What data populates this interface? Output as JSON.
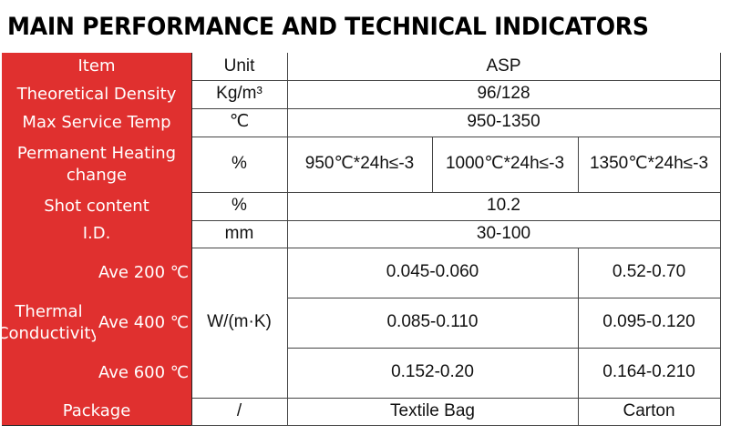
{
  "title": "MAIN PERFORMANCE AND TECHNICAL INDICATORS",
  "table": {
    "header": [
      "Item",
      "Unit",
      "ASP"
    ],
    "rows": [
      [
        "Theoretical Density",
        "Kg/m³",
        "96/128"
      ],
      [
        "Max Service Temp",
        "℃",
        "950-1350"
      ],
      [
        "Permanent Heating change",
        "%",
        "950℃*24h≤-3",
        "1000℃*24h≤-3",
        "1350℃*24h≤-3"
      ],
      [
        "Shot content",
        "%",
        "10.2"
      ],
      [
        "I.D.",
        "mm",
        "30-100"
      ]
    ],
    "thermal": {
      "label": "Thermal Conductivity",
      "unit": "W/(m·K)",
      "rows": [
        [
          "Ave 200 ℃",
          "0.045-0.060",
          "0.52-0.70"
        ],
        [
          "Ave 400 ℃",
          "0.085-0.110",
          "0.095-0.120"
        ],
        [
          "Ave 600 ℃",
          "0.152-0.20",
          "0.164-0.210"
        ]
      ]
    },
    "package": [
      "Package",
      "/",
      "Textile Bag",
      "Carton"
    ]
  }
}
